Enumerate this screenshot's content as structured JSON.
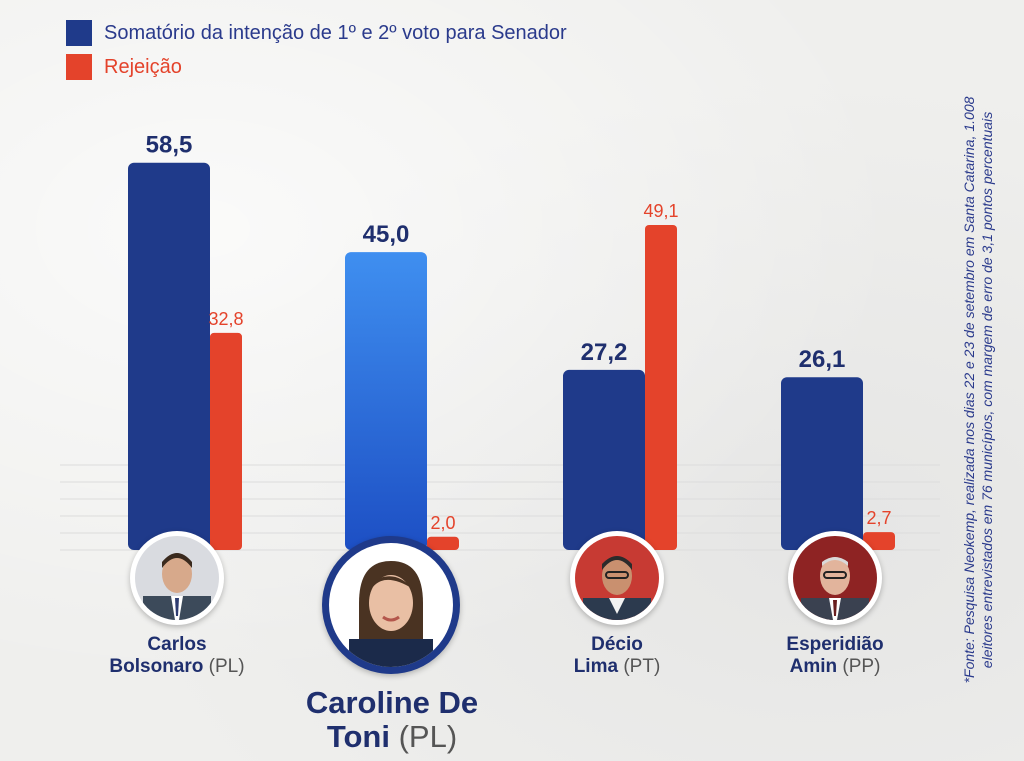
{
  "legend": {
    "intention": "Somatório da intenção de 1º e 2º voto para Senador",
    "rejection": "Rejeição"
  },
  "colors": {
    "intention": "#1f3a8a",
    "intention_highlight": "#2f7ee6",
    "rejection": "#e4432b",
    "label_blue": "#1f2f6e",
    "label_red": "#e4432b"
  },
  "chart_data": {
    "type": "bar",
    "categories": [
      "Carlos Bolsonaro (PL)",
      "Caroline De Toni (PL)",
      "Décio Lima (PT)",
      "Esperidião Amin (PP)"
    ],
    "series": [
      {
        "name": "Somatório da intenção de 1º e 2º voto para Senador",
        "values": [
          58.5,
          45.0,
          27.2,
          26.1
        ],
        "labels": [
          "58,5",
          "45,0",
          "27,2",
          "26,1"
        ]
      },
      {
        "name": "Rejeição",
        "values": [
          32.8,
          2.0,
          49.1,
          2.7
        ],
        "labels": [
          "32,8",
          "2,0",
          "49,1",
          "2,7"
        ]
      }
    ],
    "ylim": [
      0,
      60
    ],
    "highlight": "Caroline De Toni (PL)"
  },
  "candidates": [
    {
      "first": "Carlos",
      "last": "Bolsonaro",
      "party": "(PL)"
    },
    {
      "first": "Caroline De",
      "last": "Toni",
      "party": "(PL)"
    },
    {
      "first": "Décio",
      "last": "Lima",
      "party": "(PT)"
    },
    {
      "first": "Esperidião",
      "last": "Amin",
      "party": "(PP)"
    }
  ],
  "source": "*Fonte: Pesquisa Neokemp, realizada nos dias 22 e 23 de setembro em Santa Catarina, 1.008 eleitores entrevistados em 76 municípios, com margem de erro de 3,1 pontos percentuais"
}
